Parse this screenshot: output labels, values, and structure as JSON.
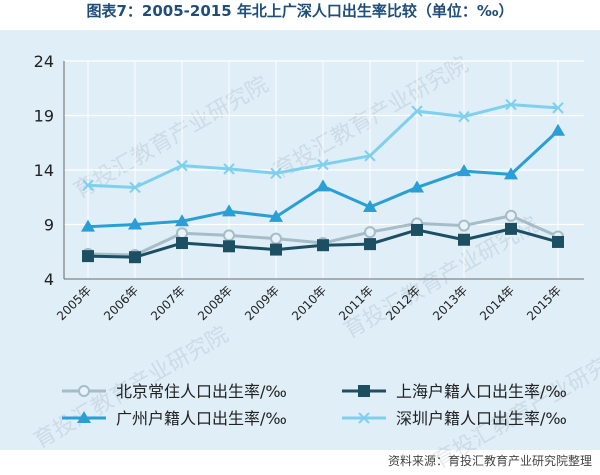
{
  "title": "图表7：2005-2015 年北上广深人口出生率比较（单位：‰）",
  "source": "资料来源：育投汇教育产业研究院整理",
  "watermark": "育投汇教育产业研究院",
  "colors": {
    "background": "#dfeef7",
    "grid": "#ffffff",
    "beijing": "#a6bdc8",
    "shanghai": "#1d4f63",
    "guangzhou": "#2a9fd6",
    "shenzhen": "#7fd0ef",
    "title": "#1f4e79"
  },
  "chart_data": {
    "type": "line",
    "title": "图表7：2005-2015 年北上广深人口出生率比较（单位：‰）",
    "categories": [
      "2005年",
      "2006年",
      "2007年",
      "2008年",
      "2009年",
      "2010年",
      "2011年",
      "2012年",
      "2013年",
      "2014年",
      "2015年"
    ],
    "ylim": [
      4,
      24
    ],
    "yticks": [
      4,
      9,
      14,
      19,
      24
    ],
    "grid": true,
    "legend_position": "bottom",
    "series": [
      {
        "name": "北京常住人口出生率/‰",
        "marker": "circle",
        "values": [
          6.3,
          6.2,
          8.2,
          8.0,
          7.7,
          7.3,
          8.3,
          9.1,
          8.9,
          9.8,
          7.9
        ]
      },
      {
        "name": "上海户籍人口出生率/‰",
        "marker": "square",
        "values": [
          6.1,
          6.0,
          7.3,
          7.0,
          6.7,
          7.1,
          7.2,
          8.5,
          7.6,
          8.6,
          7.4
        ]
      },
      {
        "name": "广州户籍人口出生率/‰",
        "marker": "triangle",
        "values": [
          8.8,
          9.0,
          9.3,
          10.2,
          9.7,
          12.5,
          10.6,
          12.4,
          13.9,
          13.6,
          17.6
        ]
      },
      {
        "name": "深圳户籍人口出生率/‰",
        "marker": "x",
        "values": [
          12.6,
          12.4,
          14.4,
          14.1,
          13.7,
          14.5,
          15.3,
          19.4,
          18.9,
          20.0,
          19.7
        ]
      }
    ]
  }
}
